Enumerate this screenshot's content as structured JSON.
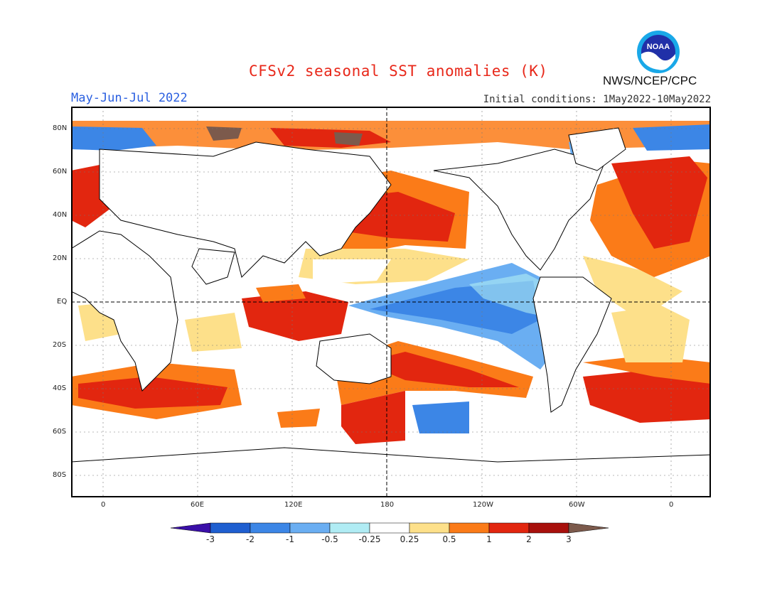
{
  "title": "CFSv2 seasonal SST anomalies (K)",
  "period": "May-Jun-Jul 2022",
  "initial_conditions": "Initial conditions: 1May2022-10May2022",
  "agency": "NWS/NCEP/CPC",
  "logo_text": "NOAA",
  "lat_labels": [
    "80N",
    "60N",
    "40N",
    "20N",
    "EQ",
    "20S",
    "40S",
    "60S",
    "80S"
  ],
  "lon_labels": [
    "0",
    "60E",
    "120E",
    "180",
    "120W",
    "60W",
    "0"
  ],
  "colorbar": {
    "labels": [
      "-3",
      "-2",
      "-1",
      "-0.5",
      "-0.25",
      "0.25",
      "0.5",
      "1",
      "2",
      "3"
    ],
    "colors": [
      "#3a0fa8",
      "#1f5fd0",
      "#3c86e6",
      "#6aaef2",
      "#b0ecf4",
      "#ffffff",
      "#fde08a",
      "#fb7b18",
      "#e2260f",
      "#a8100c",
      "#7c5a4c"
    ]
  }
}
